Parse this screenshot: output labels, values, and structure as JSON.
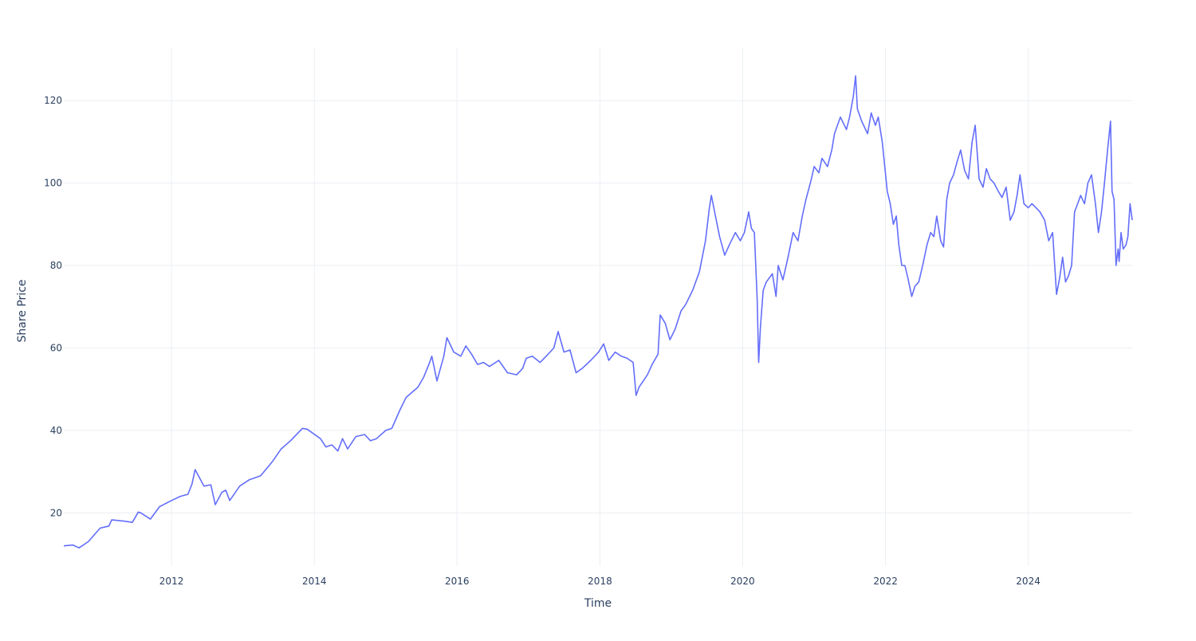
{
  "chart_data": {
    "type": "line",
    "xlabel": "Time",
    "ylabel": "Share Price",
    "xlim": [
      "2010-06-29",
      "2025-06-16"
    ],
    "ylim": [
      7.1,
      132.8
    ],
    "x_ticks": [
      "2012",
      "2014",
      "2016",
      "2018",
      "2020",
      "2022",
      "2024"
    ],
    "y_ticks": [
      20,
      40,
      60,
      80,
      100,
      120
    ],
    "grid": true,
    "line_color": "#636efa",
    "series": [
      {
        "x": [
          "2010-06-29",
          "2010-08-15",
          "2010-09-15",
          "2010-11-01",
          "2011-01-01",
          "2011-02-15",
          "2011-03-01",
          "2011-05-01",
          "2011-06-15",
          "2011-07-15",
          "2011-07-28",
          "2011-09-15",
          "2011-11-01",
          "2012-01-01",
          "2012-02-15",
          "2012-03-25",
          "2012-04-15",
          "2012-05-01",
          "2012-06-15",
          "2012-07-20",
          "2012-08-12",
          "2012-09-15",
          "2012-10-05",
          "2012-10-25",
          "2012-12-15",
          "2013-02-01",
          "2013-04-01",
          "2013-06-01",
          "2013-07-15",
          "2013-09-01",
          "2013-11-01",
          "2013-11-25",
          "2014-02-01",
          "2014-03-01",
          "2014-04-01",
          "2014-05-01",
          "2014-05-25",
          "2014-06-20",
          "2014-08-01",
          "2014-09-15",
          "2014-10-15",
          "2014-11-15",
          "2015-01-01",
          "2015-02-01",
          "2015-03-15",
          "2015-04-15",
          "2015-06-15",
          "2015-07-15",
          "2015-08-10",
          "2015-08-25",
          "2015-09-20",
          "2015-10-25",
          "2015-11-10",
          "2015-12-15",
          "2016-01-20",
          "2016-02-15",
          "2016-03-15",
          "2016-04-15",
          "2016-05-15",
          "2016-06-15",
          "2016-08-01",
          "2016-09-15",
          "2016-11-01",
          "2016-12-01",
          "2016-12-20",
          "2017-01-20",
          "2017-03-01",
          "2017-04-01",
          "2017-05-10",
          "2017-06-01",
          "2017-07-01",
          "2017-08-01",
          "2017-09-01",
          "2017-10-01",
          "2017-11-15",
          "2017-12-25",
          "2018-01-20",
          "2018-02-15",
          "2018-03-20",
          "2018-04-20",
          "2018-05-20",
          "2018-06-20",
          "2018-07-05",
          "2018-07-20",
          "2018-09-01",
          "2018-09-25",
          "2018-10-25",
          "2018-11-05",
          "2018-12-01",
          "2018-12-25",
          "2019-01-20",
          "2019-02-20",
          "2019-03-15",
          "2019-04-20",
          "2019-05-25",
          "2019-06-25",
          "2019-07-15",
          "2019-07-25",
          "2019-08-15",
          "2019-09-05",
          "2019-10-01",
          "2019-10-25",
          "2019-11-25",
          "2019-12-20",
          "2020-01-10",
          "2020-02-01",
          "2020-02-15",
          "2020-03-01",
          "2020-03-15",
          "2020-03-23",
          "2020-04-01",
          "2020-04-15",
          "2020-05-01",
          "2020-06-01",
          "2020-06-20",
          "2020-07-01",
          "2020-07-25",
          "2020-08-20",
          "2020-09-15",
          "2020-10-10",
          "2020-11-01",
          "2020-11-20",
          "2020-12-15",
          "2021-01-01",
          "2021-01-25",
          "2021-02-10",
          "2021-03-10",
          "2021-04-01",
          "2021-04-15",
          "2021-05-15",
          "2021-06-15",
          "2021-07-01",
          "2021-07-20",
          "2021-08-01",
          "2021-08-10",
          "2021-09-01",
          "2021-10-01",
          "2021-10-20",
          "2021-11-10",
          "2021-11-25",
          "2021-12-15",
          "2022-01-10",
          "2022-01-25",
          "2022-02-10",
          "2022-02-25",
          "2022-03-10",
          "2022-03-25",
          "2022-04-10",
          "2022-04-25",
          "2022-05-15",
          "2022-06-01",
          "2022-06-20",
          "2022-07-10",
          "2022-08-01",
          "2022-08-20",
          "2022-09-05",
          "2022-09-20",
          "2022-10-10",
          "2022-10-25",
          "2022-11-10",
          "2022-11-25",
          "2022-12-15",
          "2023-01-01",
          "2023-01-20",
          "2023-02-10",
          "2023-03-01",
          "2023-03-20",
          "2023-04-05",
          "2023-04-25",
          "2023-05-15",
          "2023-06-01",
          "2023-06-20",
          "2023-07-10",
          "2023-08-01",
          "2023-08-20",
          "2023-09-10",
          "2023-10-01",
          "2023-10-20",
          "2023-11-05",
          "2023-11-20",
          "2023-12-10",
          "2024-01-01",
          "2024-01-20",
          "2024-02-10",
          "2024-03-01",
          "2024-03-25",
          "2024-04-15",
          "2024-05-05",
          "2024-05-25",
          "2024-06-10",
          "2024-06-25",
          "2024-07-10",
          "2024-07-25",
          "2024-08-10",
          "2024-08-25",
          "2024-09-10",
          "2024-09-25",
          "2024-10-05",
          "2024-10-15",
          "2024-11-01",
          "2024-11-20",
          "2024-12-10",
          "2024-12-25",
          "2025-01-10",
          "2025-01-25",
          "2025-02-10",
          "2025-02-25",
          "2025-03-05",
          "2025-03-15",
          "2025-03-25",
          "2025-04-05",
          "2025-04-10",
          "2025-04-20",
          "2025-05-01",
          "2025-05-15",
          "2025-05-25",
          "2025-06-05",
          "2025-06-16"
        ],
        "y": [
          12.0,
          12.2,
          11.5,
          13.0,
          16.3,
          16.8,
          18.3,
          18.0,
          17.7,
          20.2,
          20.0,
          18.5,
          21.5,
          23.0,
          24.0,
          24.5,
          27.0,
          30.5,
          26.5,
          26.8,
          22.0,
          25.0,
          25.5,
          23.0,
          26.5,
          28.0,
          29.0,
          32.5,
          35.5,
          37.5,
          40.5,
          40.3,
          38.0,
          36.0,
          36.5,
          35.0,
          38.0,
          35.5,
          38.5,
          39.0,
          37.5,
          38.0,
          40.0,
          40.5,
          45.0,
          48.0,
          50.5,
          53.0,
          56.0,
          58.0,
          52.0,
          58.0,
          62.5,
          59.0,
          58.0,
          60.5,
          58.5,
          56.0,
          56.5,
          55.5,
          57.0,
          54.0,
          53.5,
          55.0,
          57.5,
          58.0,
          56.5,
          58.0,
          60.0,
          64.0,
          59.0,
          59.5,
          54.0,
          55.0,
          57.0,
          59.0,
          61.0,
          57.0,
          59.0,
          58.0,
          57.5,
          56.5,
          48.5,
          50.5,
          53.5,
          56.0,
          58.5,
          68.0,
          66.0,
          62.0,
          64.5,
          69.0,
          70.5,
          74.0,
          78.5,
          86.0,
          94.0,
          97.0,
          92.0,
          87.0,
          82.5,
          85.0,
          88.0,
          86.0,
          88.0,
          93.0,
          89.0,
          88.0,
          72.0,
          56.5,
          65.0,
          74.0,
          76.0,
          78.0,
          72.5,
          80.0,
          76.5,
          82.0,
          88.0,
          86.0,
          92.0,
          96.0,
          100.5,
          104.0,
          102.5,
          106.0,
          104.0,
          108.0,
          112.0,
          116.0,
          113.0,
          116.0,
          121.0,
          126.0,
          118.0,
          115.0,
          112.0,
          117.0,
          114.0,
          116.0,
          110.0,
          98.0,
          95.0,
          90.0,
          92.0,
          85.0,
          80.0,
          80.0,
          77.0,
          72.5,
          75.0,
          76.0,
          80.0,
          85.0,
          88.0,
          87.0,
          92.0,
          86.0,
          84.5,
          96.0,
          100.0,
          102.0,
          105.0,
          108.0,
          103.0,
          101.0,
          110.0,
          114.0,
          101.0,
          99.0,
          103.5,
          101.0,
          100.0,
          98.0,
          96.5,
          99.0,
          91.0,
          93.0,
          97.0,
          102.0,
          95.0,
          94.0,
          95.0,
          94.0,
          93.0,
          91.0,
          86.0,
          88.0,
          73.0,
          77.0,
          82.0,
          76.0,
          77.5,
          80.0,
          93.0,
          95.0,
          97.0,
          96.0,
          95.0,
          100.0,
          102.0,
          95.0,
          88.0,
          93.0,
          100.0,
          108.0,
          115.0,
          98.0,
          96.0,
          80.0,
          84.0,
          81.0,
          88.0,
          84.0,
          85.0,
          87.0,
          95.0,
          91.0
        ]
      }
    ]
  }
}
